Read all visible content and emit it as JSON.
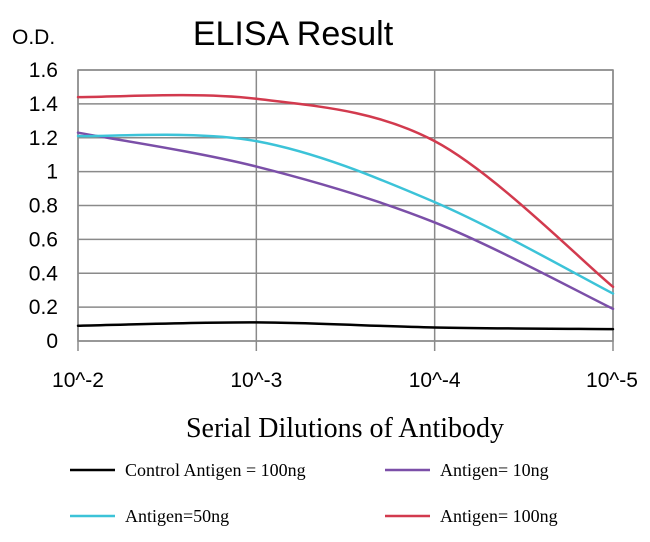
{
  "chart_data": {
    "type": "line",
    "title": "ELISA Result",
    "ylabel": "O.D.",
    "xlabel": "Serial Dilutions of Antibody",
    "x_ticks": [
      "10^-2",
      "10^-3",
      "10^-4",
      "10^-5"
    ],
    "x_values": [
      0.01,
      0.001,
      0.0001,
      1e-05
    ],
    "x_scale": "log",
    "y_ticks": [
      "0",
      "0.2",
      "0.4",
      "0.6",
      "0.8",
      "1",
      "1.2",
      "1.4",
      "1.6"
    ],
    "ylim": [
      0,
      1.6
    ],
    "grid": true,
    "legend_position": "bottom",
    "series": [
      {
        "name": "Control Antigen = 100ng",
        "color": "#000000",
        "x": [
          0.01,
          0.001,
          0.0001,
          1e-05
        ],
        "values": [
          0.09,
          0.11,
          0.08,
          0.07
        ]
      },
      {
        "name": "Antigen= 10ng",
        "color": "#7b4fa8",
        "x": [
          0.01,
          0.001,
          0.0001,
          1e-05
        ],
        "values": [
          1.23,
          1.03,
          0.7,
          0.19
        ]
      },
      {
        "name": "Antigen=50ng",
        "color": "#3cc3d8",
        "x": [
          0.01,
          0.001,
          0.0001,
          1e-05
        ],
        "values": [
          1.21,
          1.18,
          0.82,
          0.28
        ]
      },
      {
        "name": "Antigen= 100ng",
        "color": "#d23a4e",
        "x": [
          0.01,
          0.001,
          0.0001,
          1e-05
        ],
        "values": [
          1.44,
          1.43,
          1.18,
          0.32
        ]
      }
    ]
  }
}
